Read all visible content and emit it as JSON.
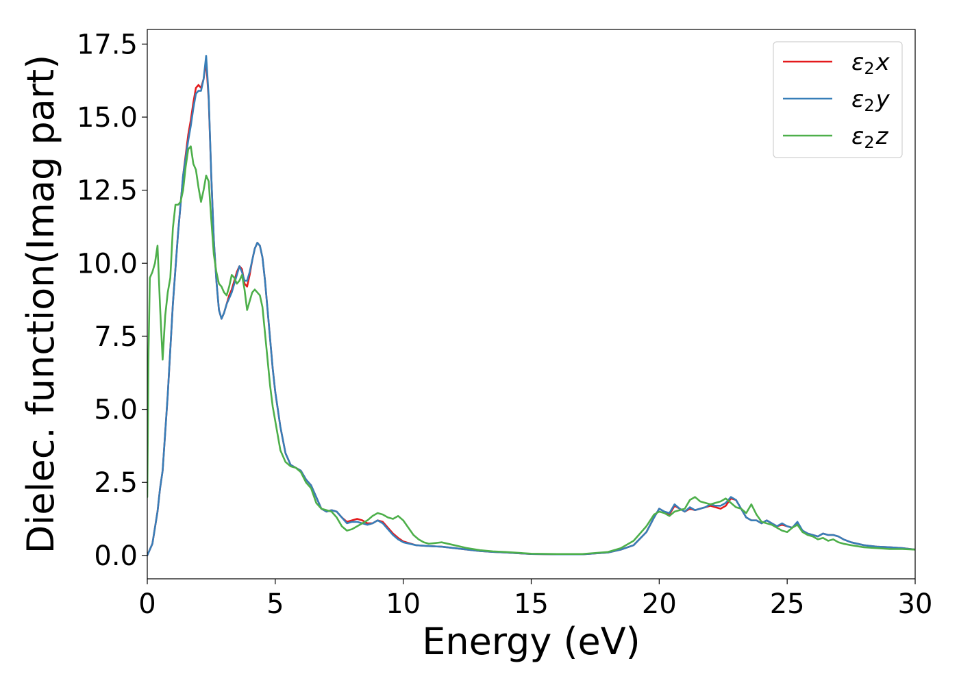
{
  "chart_data": {
    "type": "line",
    "xlabel": "Energy (eV)",
    "ylabel": "Dielec. function(Imag part)",
    "xlim": [
      0,
      30
    ],
    "ylim": [
      -0.8,
      18.0
    ],
    "xticks": [
      0,
      5,
      10,
      15,
      20,
      25,
      30
    ],
    "xtick_labels": [
      "0",
      "5",
      "10",
      "15",
      "20",
      "25",
      "30"
    ],
    "yticks": [
      0.0,
      2.5,
      5.0,
      7.5,
      10.0,
      12.5,
      15.0,
      17.5
    ],
    "ytick_labels": [
      "0.0",
      "2.5",
      "5.0",
      "7.5",
      "10.0",
      "12.5",
      "15.0",
      "17.5"
    ],
    "grid": false,
    "legend_position": "top-right",
    "series": [
      {
        "name": "ε₂x",
        "legend_base": "ε",
        "legend_sub": "2",
        "legend_var": "x",
        "color": "#e41a1c",
        "x": [
          0,
          0.2,
          0.4,
          0.5,
          0.6,
          0.8,
          1.0,
          1.2,
          1.4,
          1.6,
          1.7,
          1.8,
          1.9,
          2.0,
          2.1,
          2.2,
          2.3,
          2.4,
          2.5,
          2.6,
          2.7,
          2.8,
          2.9,
          3.0,
          3.1,
          3.2,
          3.3,
          3.4,
          3.5,
          3.6,
          3.7,
          3.8,
          3.9,
          4.0,
          4.1,
          4.2,
          4.3,
          4.4,
          4.5,
          4.6,
          4.7,
          4.8,
          4.9,
          5.0,
          5.2,
          5.4,
          5.6,
          5.8,
          6.0,
          6.2,
          6.4,
          6.6,
          6.8,
          7.0,
          7.2,
          7.4,
          7.6,
          7.8,
          8.0,
          8.2,
          8.4,
          8.6,
          8.8,
          9.0,
          9.2,
          9.4,
          9.6,
          9.8,
          10.0,
          10.5,
          11.0,
          11.5,
          12.0,
          12.5,
          13.0,
          13.5,
          14.0,
          15.0,
          16.0,
          17.0,
          18.0,
          18.5,
          19.0,
          19.5,
          19.8,
          20.0,
          20.2,
          20.4,
          20.6,
          20.8,
          21.0,
          21.2,
          21.4,
          21.6,
          21.8,
          22.0,
          22.2,
          22.4,
          22.6,
          22.8,
          23.0,
          23.2,
          23.4,
          23.6,
          23.8,
          24.0,
          24.2,
          24.4,
          24.6,
          24.8,
          25.0,
          25.2,
          25.4,
          25.6,
          25.8,
          26.0,
          26.2,
          26.4,
          26.6,
          26.8,
          27.0,
          27.2,
          27.5,
          28.0,
          28.5,
          29.0,
          29.5,
          30.0
        ],
        "y": [
          0.0,
          0.4,
          1.5,
          2.3,
          2.9,
          5.5,
          8.6,
          11.0,
          13.0,
          14.4,
          14.9,
          15.5,
          16.0,
          16.1,
          16.0,
          16.3,
          16.9,
          15.6,
          13.0,
          10.8,
          9.4,
          8.4,
          8.1,
          8.3,
          8.6,
          8.9,
          9.1,
          9.4,
          9.7,
          9.9,
          9.8,
          9.3,
          9.2,
          9.6,
          10.1,
          10.5,
          10.7,
          10.6,
          10.2,
          9.4,
          8.4,
          7.4,
          6.4,
          5.6,
          4.4,
          3.5,
          3.1,
          3.0,
          2.9,
          2.6,
          2.4,
          2.0,
          1.6,
          1.5,
          1.55,
          1.5,
          1.3,
          1.15,
          1.2,
          1.25,
          1.2,
          1.1,
          1.1,
          1.2,
          1.15,
          0.95,
          0.75,
          0.6,
          0.48,
          0.35,
          0.32,
          0.3,
          0.25,
          0.2,
          0.15,
          0.12,
          0.1,
          0.05,
          0.04,
          0.04,
          0.1,
          0.2,
          0.35,
          0.8,
          1.3,
          1.6,
          1.5,
          1.4,
          1.7,
          1.6,
          1.5,
          1.6,
          1.55,
          1.6,
          1.65,
          1.7,
          1.65,
          1.6,
          1.7,
          1.95,
          1.9,
          1.6,
          1.3,
          1.2,
          1.2,
          1.1,
          1.2,
          1.1,
          1.0,
          1.05,
          1.0,
          0.95,
          1.1,
          0.85,
          0.75,
          0.7,
          0.65,
          0.75,
          0.7,
          0.7,
          0.65,
          0.55,
          0.45,
          0.35,
          0.3,
          0.28,
          0.25,
          0.2
        ]
      },
      {
        "name": "ε₂y",
        "legend_base": "ε",
        "legend_sub": "2",
        "legend_var": "y",
        "color": "#377eb8",
        "x": [
          0,
          0.2,
          0.4,
          0.5,
          0.6,
          0.8,
          1.0,
          1.2,
          1.4,
          1.6,
          1.7,
          1.8,
          1.9,
          2.0,
          2.1,
          2.2,
          2.3,
          2.4,
          2.5,
          2.6,
          2.7,
          2.8,
          2.9,
          3.0,
          3.1,
          3.2,
          3.3,
          3.4,
          3.5,
          3.6,
          3.7,
          3.8,
          3.9,
          4.0,
          4.1,
          4.2,
          4.3,
          4.4,
          4.5,
          4.6,
          4.7,
          4.8,
          4.9,
          5.0,
          5.2,
          5.4,
          5.6,
          5.8,
          6.0,
          6.2,
          6.4,
          6.6,
          6.8,
          7.0,
          7.2,
          7.4,
          7.6,
          7.8,
          8.0,
          8.2,
          8.4,
          8.6,
          8.8,
          9.0,
          9.2,
          9.4,
          9.6,
          9.8,
          10.0,
          10.5,
          11.0,
          11.5,
          12.0,
          12.5,
          13.0,
          13.5,
          14.0,
          15.0,
          16.0,
          17.0,
          18.0,
          18.5,
          19.0,
          19.5,
          19.8,
          20.0,
          20.2,
          20.4,
          20.6,
          20.8,
          21.0,
          21.2,
          21.4,
          21.6,
          21.8,
          22.0,
          22.2,
          22.4,
          22.6,
          22.8,
          23.0,
          23.2,
          23.4,
          23.6,
          23.8,
          24.0,
          24.2,
          24.4,
          24.6,
          24.8,
          25.0,
          25.2,
          25.4,
          25.6,
          25.8,
          26.0,
          26.2,
          26.4,
          26.6,
          26.8,
          27.0,
          27.2,
          27.5,
          28.0,
          28.5,
          29.0,
          29.5,
          30.0
        ],
        "y": [
          0.0,
          0.4,
          1.5,
          2.3,
          2.9,
          5.5,
          8.6,
          11.0,
          13.0,
          14.2,
          14.7,
          15.3,
          15.8,
          15.9,
          15.9,
          16.3,
          17.1,
          15.7,
          13.0,
          10.8,
          9.4,
          8.4,
          8.1,
          8.3,
          8.6,
          8.8,
          9.0,
          9.3,
          9.6,
          9.9,
          9.7,
          9.4,
          9.4,
          9.7,
          10.1,
          10.5,
          10.7,
          10.6,
          10.2,
          9.4,
          8.4,
          7.4,
          6.4,
          5.6,
          4.4,
          3.5,
          3.1,
          3.0,
          2.9,
          2.6,
          2.4,
          2.0,
          1.6,
          1.5,
          1.55,
          1.5,
          1.3,
          1.1,
          1.15,
          1.15,
          1.1,
          1.05,
          1.1,
          1.2,
          1.1,
          0.9,
          0.7,
          0.55,
          0.45,
          0.35,
          0.32,
          0.3,
          0.25,
          0.2,
          0.15,
          0.12,
          0.1,
          0.05,
          0.04,
          0.04,
          0.1,
          0.2,
          0.35,
          0.8,
          1.3,
          1.6,
          1.5,
          1.45,
          1.75,
          1.6,
          1.5,
          1.65,
          1.55,
          1.6,
          1.65,
          1.75,
          1.7,
          1.7,
          1.8,
          2.0,
          1.9,
          1.6,
          1.3,
          1.2,
          1.2,
          1.1,
          1.2,
          1.1,
          1.0,
          1.1,
          1.0,
          0.95,
          1.15,
          0.85,
          0.75,
          0.7,
          0.65,
          0.75,
          0.7,
          0.7,
          0.65,
          0.55,
          0.45,
          0.35,
          0.3,
          0.28,
          0.25,
          0.2
        ]
      },
      {
        "name": "ε₂z",
        "legend_base": "ε",
        "legend_sub": "2",
        "legend_var": "z",
        "color": "#4daf4a",
        "x": [
          0,
          0.05,
          0.1,
          0.2,
          0.3,
          0.4,
          0.5,
          0.6,
          0.7,
          0.8,
          0.9,
          1.0,
          1.1,
          1.2,
          1.3,
          1.4,
          1.5,
          1.6,
          1.7,
          1.8,
          1.9,
          2.0,
          2.1,
          2.2,
          2.3,
          2.4,
          2.5,
          2.6,
          2.7,
          2.8,
          2.9,
          3.0,
          3.1,
          3.2,
          3.3,
          3.4,
          3.5,
          3.6,
          3.7,
          3.8,
          3.9,
          4.0,
          4.1,
          4.2,
          4.3,
          4.4,
          4.5,
          4.6,
          4.7,
          4.8,
          4.9,
          5.0,
          5.2,
          5.4,
          5.6,
          5.8,
          6.0,
          6.2,
          6.4,
          6.6,
          6.8,
          7.0,
          7.2,
          7.4,
          7.6,
          7.8,
          8.0,
          8.2,
          8.4,
          8.6,
          8.8,
          9.0,
          9.2,
          9.4,
          9.6,
          9.8,
          10.0,
          10.2,
          10.4,
          10.6,
          10.8,
          11.0,
          11.5,
          12.0,
          12.5,
          13.0,
          13.5,
          14.0,
          15.0,
          16.0,
          17.0,
          18.0,
          18.5,
          19.0,
          19.5,
          19.8,
          20.0,
          20.2,
          20.4,
          20.6,
          20.8,
          21.0,
          21.2,
          21.4,
          21.6,
          21.8,
          22.0,
          22.2,
          22.4,
          22.6,
          22.8,
          23.0,
          23.2,
          23.4,
          23.6,
          23.8,
          24.0,
          24.2,
          24.4,
          24.6,
          24.8,
          25.0,
          25.2,
          25.4,
          25.6,
          25.8,
          26.0,
          26.2,
          26.4,
          26.6,
          26.8,
          27.0,
          27.2,
          27.5,
          28.0,
          28.5,
          29.0,
          29.5,
          30.0
        ],
        "y": [
          2.0,
          7.0,
          9.5,
          9.7,
          10.0,
          10.6,
          8.5,
          6.7,
          8.2,
          9.0,
          9.5,
          11.2,
          12.0,
          12.0,
          12.1,
          12.5,
          13.3,
          13.9,
          14.0,
          13.4,
          13.2,
          12.6,
          12.1,
          12.5,
          13.0,
          12.8,
          11.5,
          10.3,
          9.7,
          9.3,
          9.2,
          9.0,
          8.9,
          9.2,
          9.6,
          9.5,
          9.3,
          9.4,
          9.6,
          9.1,
          8.4,
          8.7,
          9.0,
          9.1,
          9.0,
          8.9,
          8.5,
          7.6,
          6.7,
          5.8,
          5.1,
          4.6,
          3.6,
          3.2,
          3.05,
          3.0,
          2.85,
          2.5,
          2.3,
          1.8,
          1.6,
          1.55,
          1.5,
          1.3,
          1.0,
          0.85,
          0.9,
          1.0,
          1.1,
          1.2,
          1.35,
          1.45,
          1.4,
          1.3,
          1.25,
          1.35,
          1.2,
          0.95,
          0.7,
          0.55,
          0.45,
          0.4,
          0.45,
          0.35,
          0.25,
          0.18,
          0.14,
          0.12,
          0.06,
          0.05,
          0.05,
          0.12,
          0.25,
          0.5,
          1.0,
          1.4,
          1.5,
          1.45,
          1.35,
          1.5,
          1.55,
          1.6,
          1.9,
          2.0,
          1.85,
          1.8,
          1.75,
          1.8,
          1.85,
          1.95,
          1.8,
          1.65,
          1.6,
          1.45,
          1.75,
          1.4,
          1.15,
          1.1,
          1.05,
          0.95,
          0.85,
          0.8,
          0.95,
          1.05,
          0.8,
          0.7,
          0.65,
          0.55,
          0.6,
          0.5,
          0.55,
          0.45,
          0.4,
          0.35,
          0.28,
          0.25,
          0.22,
          0.22,
          0.2
        ]
      }
    ]
  }
}
